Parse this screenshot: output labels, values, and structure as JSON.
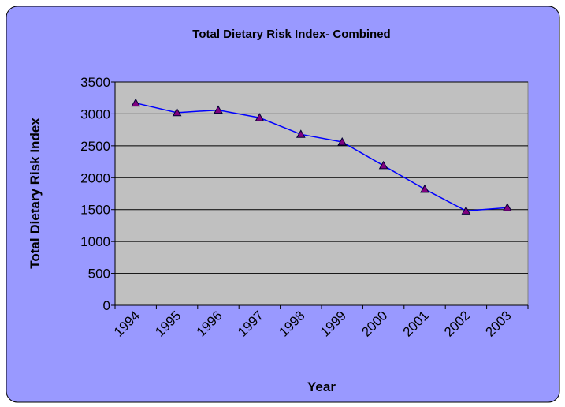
{
  "chart_data": {
    "type": "line",
    "title": "Total Dietary Risk Index- Combined",
    "x_label": "Year",
    "y_label": "Total Dietary Risk Index",
    "categories": [
      "1994",
      "1995",
      "1996",
      "1997",
      "1998",
      "1999",
      "2000",
      "2001",
      "2002",
      "2003"
    ],
    "series": [
      {
        "name": "Total Dietary Risk Index",
        "color": "#0000ff",
        "marker_color": "#800080",
        "values": [
          3170,
          3020,
          3060,
          2940,
          2680,
          2560,
          2190,
          1820,
          1480,
          1530
        ]
      }
    ],
    "ylim": [
      0,
      3500
    ],
    "yticks": [
      0,
      500,
      1000,
      1500,
      2000,
      2500,
      3000,
      3500
    ],
    "grid": true
  }
}
